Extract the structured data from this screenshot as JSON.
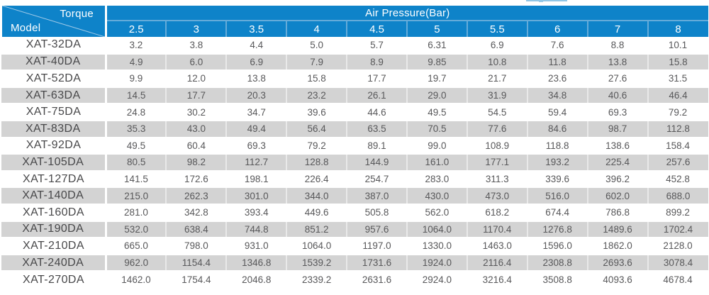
{
  "table": {
    "corner": {
      "top_label": "Torque",
      "bottom_label": "Model"
    },
    "header": {
      "group_label": "Air Pressure(Bar)",
      "pressures": [
        "2.5",
        "3",
        "3.5",
        "4",
        "4.5",
        "5",
        "5.5",
        "6",
        "7",
        "8"
      ]
    },
    "rows": [
      {
        "model": "XAT-32DA",
        "values": [
          "3.2",
          "3.8",
          "4.4",
          "5.0",
          "5.7",
          "6.31",
          "6.9",
          "7.6",
          "8.8",
          "10.1"
        ]
      },
      {
        "model": "XAT-40DA",
        "values": [
          "4.9",
          "6.0",
          "6.9",
          "7.9",
          "8.9",
          "9.85",
          "10.8",
          "11.8",
          "13.8",
          "15.8"
        ]
      },
      {
        "model": "XAT-52DA",
        "values": [
          "9.9",
          "12.0",
          "13.8",
          "15.8",
          "17.7",
          "19.7",
          "21.7",
          "23.6",
          "27.6",
          "31.5"
        ]
      },
      {
        "model": "XAT-63DA",
        "values": [
          "14.5",
          "17.7",
          "20.3",
          "23.2",
          "26.1",
          "29.0",
          "31.9",
          "34.8",
          "40.6",
          "46.4"
        ]
      },
      {
        "model": "XAT-75DA",
        "values": [
          "24.8",
          "30.2",
          "34.7",
          "39.6",
          "44.6",
          "49.5",
          "54.5",
          "59.4",
          "69.3",
          "79.2"
        ]
      },
      {
        "model": "XAT-83DA",
        "values": [
          "35.3",
          "43.0",
          "49.4",
          "56.4",
          "63.5",
          "70.5",
          "77.6",
          "84.6",
          "98.7",
          "112.8"
        ]
      },
      {
        "model": "XAT-92DA",
        "values": [
          "49.5",
          "60.4",
          "69.3",
          "79.2",
          "89.1",
          "99.0",
          "108.9",
          "118.8",
          "138.6",
          "158.4"
        ]
      },
      {
        "model": "XAT-105DA",
        "values": [
          "80.5",
          "98.2",
          "112.7",
          "128.8",
          "144.9",
          "161.0",
          "177.1",
          "193.2",
          "225.4",
          "257.6"
        ]
      },
      {
        "model": "XAT-127DA",
        "values": [
          "141.5",
          "172.6",
          "198.1",
          "226.4",
          "254.7",
          "283.0",
          "311.3",
          "339.6",
          "396.2",
          "452.8"
        ]
      },
      {
        "model": "XAT-140DA",
        "values": [
          "215.0",
          "262.3",
          "301.0",
          "344.0",
          "387.0",
          "430.0",
          "473.0",
          "516.0",
          "602.0",
          "688.0"
        ]
      },
      {
        "model": "XAT-160DA",
        "values": [
          "281.0",
          "342.8",
          "393.4",
          "449.6",
          "505.8",
          "562.0",
          "618.2",
          "674.4",
          "786.8",
          "899.2"
        ]
      },
      {
        "model": "XAT-190DA",
        "values": [
          "532.0",
          "638.4",
          "744.8",
          "851.2",
          "957.6",
          "1064.0",
          "1170.4",
          "1276.8",
          "1489.6",
          "1702.4"
        ]
      },
      {
        "model": "XAT-210DA",
        "values": [
          "665.0",
          "798.0",
          "931.0",
          "1064.0",
          "1197.0",
          "1330.0",
          "1463.0",
          "1596.0",
          "1862.0",
          "2128.0"
        ]
      },
      {
        "model": "XAT-240DA",
        "values": [
          "962.0",
          "1154.4",
          "1346.8",
          "1539.2",
          "1731.6",
          "1924.0",
          "2116.4",
          "2308.8",
          "2693.6",
          "3078.4"
        ]
      },
      {
        "model": "XAT-270DA",
        "values": [
          "1462.0",
          "1754.4",
          "2046.8",
          "2339.2",
          "2631.6",
          "2924.0",
          "3216.4",
          "3508.8",
          "4093.6",
          "4678.4"
        ]
      }
    ]
  },
  "colors": {
    "header_blue": "#0e83c9",
    "header_divider": "#64abd9",
    "row_gray": "#d3d3d3",
    "data_text": "#58585a"
  }
}
